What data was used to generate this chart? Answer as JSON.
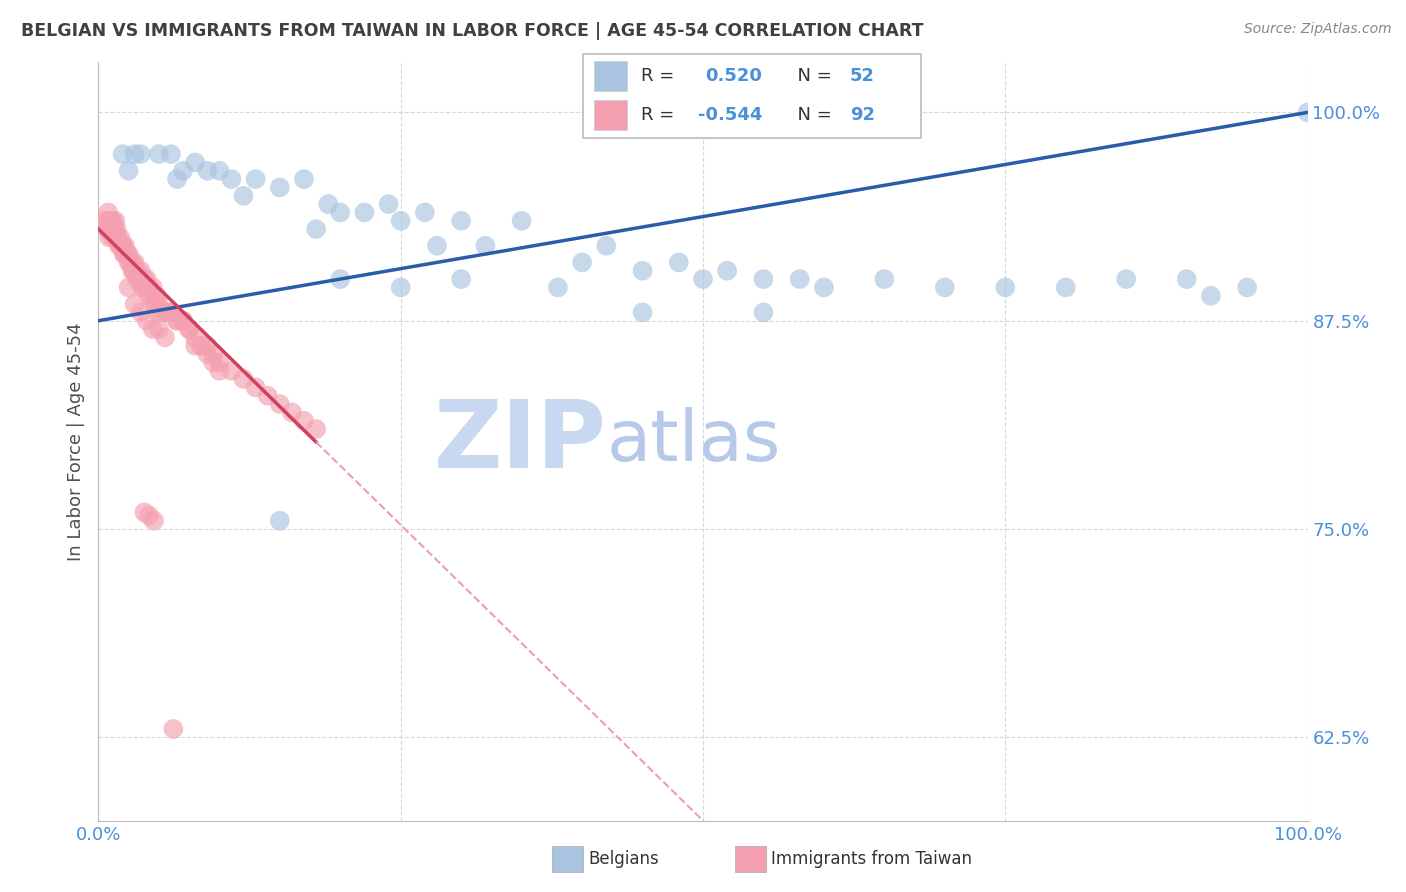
{
  "title": "BELGIAN VS IMMIGRANTS FROM TAIWAN IN LABOR FORCE | AGE 45-54 CORRELATION CHART",
  "source": "Source: ZipAtlas.com",
  "ylabel": "In Labor Force | Age 45-54",
  "xlim": [
    0.0,
    1.0
  ],
  "ylim": [
    0.575,
    1.03
  ],
  "yticks": [
    0.625,
    0.75,
    0.875,
    1.0
  ],
  "ytick_labels": [
    "62.5%",
    "75.0%",
    "87.5%",
    "100.0%"
  ],
  "xticks": [
    0.0,
    0.25,
    0.5,
    0.75,
    1.0
  ],
  "xtick_labels": [
    "0.0%",
    "",
    "",
    "",
    "100.0%"
  ],
  "color_belgian": "#a8c4e0",
  "color_taiwan": "#f4a0b0",
  "color_line_belgian": "#2a5caa",
  "color_line_taiwan": "#d04060",
  "color_line_taiwan_dashed": "#e8a0b0",
  "color_grid": "#d8d8d8",
  "color_title": "#404040",
  "color_axis_label": "#505050",
  "color_ytick": "#4a90d9",
  "color_xtick": "#4a90d9",
  "watermark_zip": "ZIP",
  "watermark_atlas": "atlas",
  "watermark_color_zip": "#c8d8f0",
  "watermark_color_atlas": "#b8c8e8",
  "belgian_x": [
    0.02,
    0.025,
    0.03,
    0.035,
    0.05,
    0.06,
    0.065,
    0.07,
    0.08,
    0.09,
    0.1,
    0.11,
    0.12,
    0.13,
    0.15,
    0.17,
    0.18,
    0.19,
    0.2,
    0.22,
    0.24,
    0.25,
    0.27,
    0.28,
    0.3,
    0.32,
    0.35,
    0.38,
    0.4,
    0.42,
    0.45,
    0.48,
    0.5,
    0.52,
    0.55,
    0.58,
    0.6,
    0.65,
    0.7,
    0.75,
    0.8,
    0.85,
    0.9,
    0.95,
    1.0,
    0.15,
    0.2,
    0.25,
    0.3,
    0.45,
    0.55,
    0.92
  ],
  "belgian_y": [
    0.975,
    0.965,
    0.975,
    0.975,
    0.975,
    0.975,
    0.96,
    0.965,
    0.97,
    0.965,
    0.965,
    0.96,
    0.95,
    0.96,
    0.955,
    0.96,
    0.93,
    0.945,
    0.94,
    0.94,
    0.945,
    0.935,
    0.94,
    0.92,
    0.935,
    0.92,
    0.935,
    0.895,
    0.91,
    0.92,
    0.905,
    0.91,
    0.9,
    0.905,
    0.9,
    0.9,
    0.895,
    0.9,
    0.895,
    0.895,
    0.895,
    0.9,
    0.9,
    0.895,
    1.0,
    0.755,
    0.9,
    0.895,
    0.9,
    0.88,
    0.88,
    0.89
  ],
  "taiwan_x": [
    0.005,
    0.007,
    0.008,
    0.009,
    0.01,
    0.011,
    0.012,
    0.013,
    0.014,
    0.015,
    0.016,
    0.017,
    0.018,
    0.019,
    0.02,
    0.021,
    0.022,
    0.023,
    0.024,
    0.025,
    0.026,
    0.027,
    0.028,
    0.029,
    0.03,
    0.032,
    0.034,
    0.036,
    0.038,
    0.04,
    0.042,
    0.044,
    0.046,
    0.048,
    0.05,
    0.055,
    0.06,
    0.065,
    0.07,
    0.075,
    0.08,
    0.085,
    0.09,
    0.095,
    0.1,
    0.11,
    0.12,
    0.13,
    0.14,
    0.15,
    0.16,
    0.17,
    0.18,
    0.025,
    0.03,
    0.035,
    0.04,
    0.045,
    0.05,
    0.055,
    0.008,
    0.01,
    0.012,
    0.015,
    0.018,
    0.02,
    0.022,
    0.025,
    0.028,
    0.03,
    0.032,
    0.035,
    0.038,
    0.04,
    0.042,
    0.045,
    0.048,
    0.05,
    0.055,
    0.06,
    0.065,
    0.07,
    0.075,
    0.08,
    0.085,
    0.09,
    0.095,
    0.1,
    0.038,
    0.042,
    0.046,
    0.062
  ],
  "taiwan_y": [
    0.935,
    0.93,
    0.94,
    0.925,
    0.935,
    0.93,
    0.935,
    0.93,
    0.935,
    0.93,
    0.925,
    0.92,
    0.925,
    0.92,
    0.92,
    0.915,
    0.92,
    0.915,
    0.915,
    0.91,
    0.91,
    0.91,
    0.905,
    0.905,
    0.905,
    0.9,
    0.9,
    0.895,
    0.895,
    0.895,
    0.89,
    0.89,
    0.885,
    0.885,
    0.88,
    0.88,
    0.88,
    0.875,
    0.875,
    0.87,
    0.865,
    0.86,
    0.86,
    0.855,
    0.85,
    0.845,
    0.84,
    0.835,
    0.83,
    0.825,
    0.82,
    0.815,
    0.81,
    0.895,
    0.885,
    0.88,
    0.875,
    0.87,
    0.87,
    0.865,
    0.935,
    0.93,
    0.925,
    0.925,
    0.92,
    0.92,
    0.915,
    0.915,
    0.91,
    0.91,
    0.905,
    0.905,
    0.9,
    0.9,
    0.895,
    0.895,
    0.89,
    0.885,
    0.88,
    0.88,
    0.875,
    0.875,
    0.87,
    0.86,
    0.86,
    0.855,
    0.85,
    0.845,
    0.76,
    0.758,
    0.755,
    0.63
  ]
}
